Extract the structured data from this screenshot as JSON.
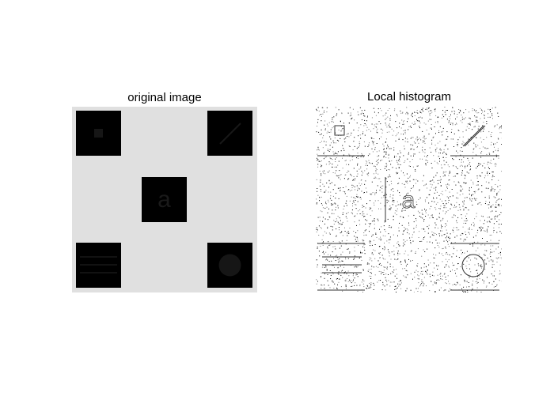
{
  "figure": {
    "left_title": "original image",
    "right_title": "Local histogram",
    "colors": {
      "background": "#e0e0e0",
      "block": "#000000",
      "inner_shape": "#141414",
      "inner_letter": "#1a1a1a",
      "histogram_bg": "#ffffff",
      "histogram_dots": "#000000"
    },
    "blocks": [
      {
        "id": "square",
        "shape": "small-square-icon"
      },
      {
        "id": "diagonal",
        "shape": "diagonal-line-icon"
      },
      {
        "id": "letter",
        "shape": "letter-icon",
        "letter": "a"
      },
      {
        "id": "stripes",
        "shape": "horizontal-lines-icon"
      },
      {
        "id": "circle",
        "shape": "circle-icon"
      }
    ]
  }
}
